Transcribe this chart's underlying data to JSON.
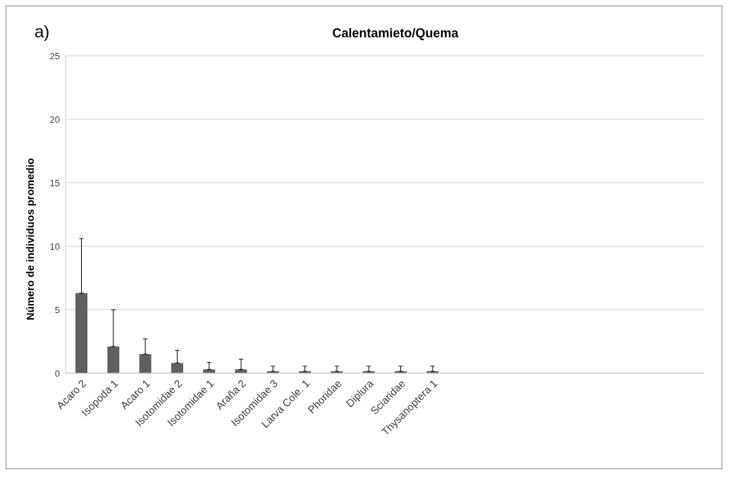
{
  "chart_data": {
    "type": "bar",
    "title": "Calentamieto/Quema",
    "ylabel": "Número de individuos promedio",
    "annotations": [
      "a)"
    ],
    "categories": [
      "Acaro 2",
      "Isopoda 1",
      "Acaro 1",
      "Isotomidae 2",
      "Isotomidae 1",
      "Araña 2",
      "Isotomidae 3",
      "Larva Cole. 1",
      "Phoridae",
      "Diplura",
      "Sciaridae",
      "Thysanoptera 1",
      null,
      null,
      null,
      null,
      null,
      null,
      null,
      null
    ],
    "values": [
      6.3,
      2.1,
      1.5,
      0.8,
      0.3,
      0.3,
      0.15,
      0.15,
      0.15,
      0.15,
      0.15,
      0.15,
      null,
      null,
      null,
      null,
      null,
      null,
      null,
      null
    ],
    "errors": [
      [
        6.3,
        10.6
      ],
      [
        2.1,
        5.0
      ],
      [
        1.5,
        2.7
      ],
      [
        0.8,
        1.8
      ],
      [
        0.3,
        0.85
      ],
      [
        0.3,
        1.1
      ],
      [
        0.15,
        0.55
      ],
      [
        0.15,
        0.55
      ],
      [
        0.15,
        0.55
      ],
      [
        0.15,
        0.55
      ],
      [
        0.15,
        0.55
      ],
      [
        0.15,
        0.55
      ],
      null,
      null,
      null,
      null,
      null,
      null,
      null,
      null
    ],
    "color": "#5f5f5f",
    "ylim": [
      0,
      25
    ],
    "yticks": [
      0,
      5,
      10,
      15,
      20,
      25
    ],
    "grid": "y",
    "legend": false
  }
}
